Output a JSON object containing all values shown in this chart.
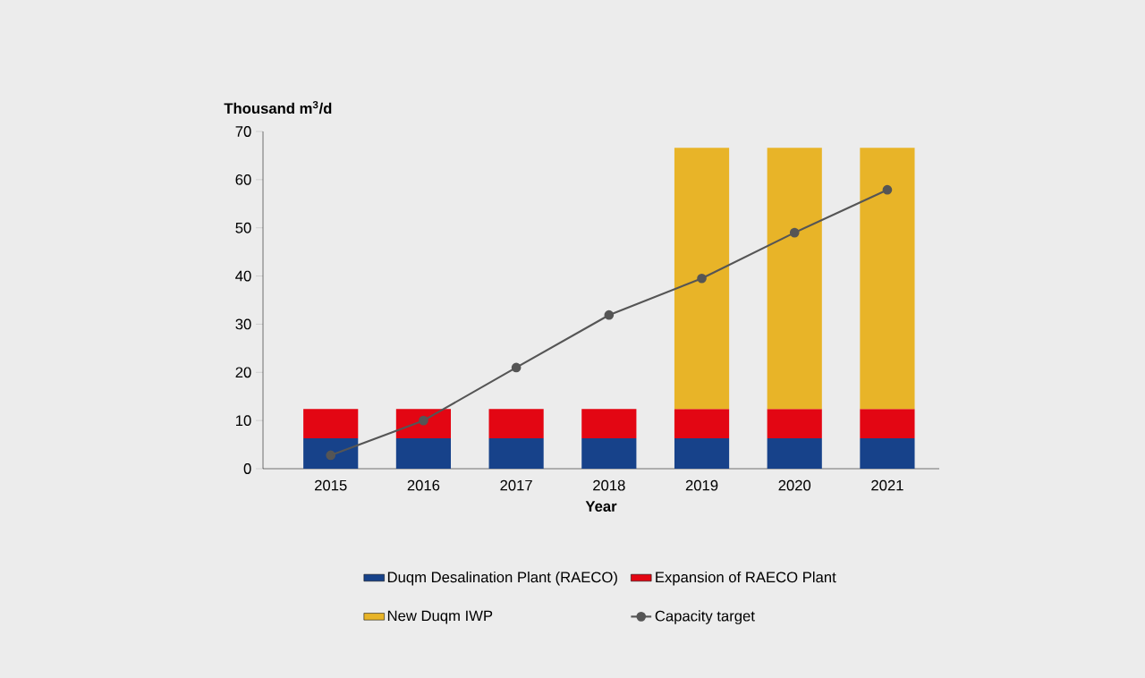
{
  "chart_data": {
    "type": "bar",
    "stacked": true,
    "ylabel": "Thousand m$^{3}$/d",
    "xlabel": "Year",
    "categories": [
      "2015",
      "2016",
      "2017",
      "2018",
      "2019",
      "2020",
      "2021"
    ],
    "series": [
      {
        "name": "Duqm Desalination Plant (RAECO)",
        "color": "#17428a",
        "values": [
          6.3,
          6.3,
          6.3,
          6.3,
          6.3,
          6.3,
          6.3
        ]
      },
      {
        "name": "Expansion of RAECO Plant",
        "color": "#e30613",
        "values": [
          6.1,
          6.1,
          6.1,
          6.1,
          6.1,
          6.1,
          6.1
        ]
      },
      {
        "name": "New Duqm IWP",
        "color": "#e8b428",
        "values": [
          null,
          null,
          null,
          null,
          54.2,
          54.2,
          54.2
        ]
      },
      {
        "name": "Capacity target",
        "type": "line",
        "color": "#555555",
        "values": [
          2.8,
          10.0,
          21.0,
          31.9,
          39.5,
          49.0,
          57.9
        ]
      }
    ],
    "marker": "circle",
    "ylim": [
      0,
      70
    ],
    "yticks": [
      0,
      10,
      20,
      30,
      40,
      50,
      60,
      70
    ],
    "legend": "bottom"
  }
}
